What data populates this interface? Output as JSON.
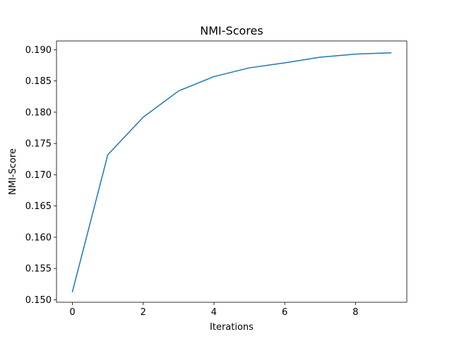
{
  "chart_data": {
    "type": "line",
    "title": "NMI-Scores",
    "xlabel": "Iterations",
    "ylabel": "NMI-Score",
    "xlim": [
      -0.45,
      9.45
    ],
    "ylim": [
      0.1496,
      0.1914
    ],
    "x_ticks": [
      0,
      2,
      4,
      6,
      8
    ],
    "x_tick_labels": [
      "0",
      "2",
      "4",
      "6",
      "8"
    ],
    "y_ticks": [
      0.15,
      0.155,
      0.16,
      0.165,
      0.17,
      0.175,
      0.18,
      0.185,
      0.19
    ],
    "y_tick_labels": [
      "0.150",
      "0.155",
      "0.160",
      "0.165",
      "0.170",
      "0.175",
      "0.180",
      "0.185",
      "0.190"
    ],
    "grid": false,
    "series": [
      {
        "color": "#1f77b4",
        "x": [
          0,
          1,
          2,
          3,
          4,
          5,
          6,
          7,
          8,
          9
        ],
        "values": [
          0.1513,
          0.1732,
          0.1792,
          0.1834,
          0.1857,
          0.1871,
          0.1879,
          0.1888,
          0.1893,
          0.1895
        ]
      }
    ]
  }
}
